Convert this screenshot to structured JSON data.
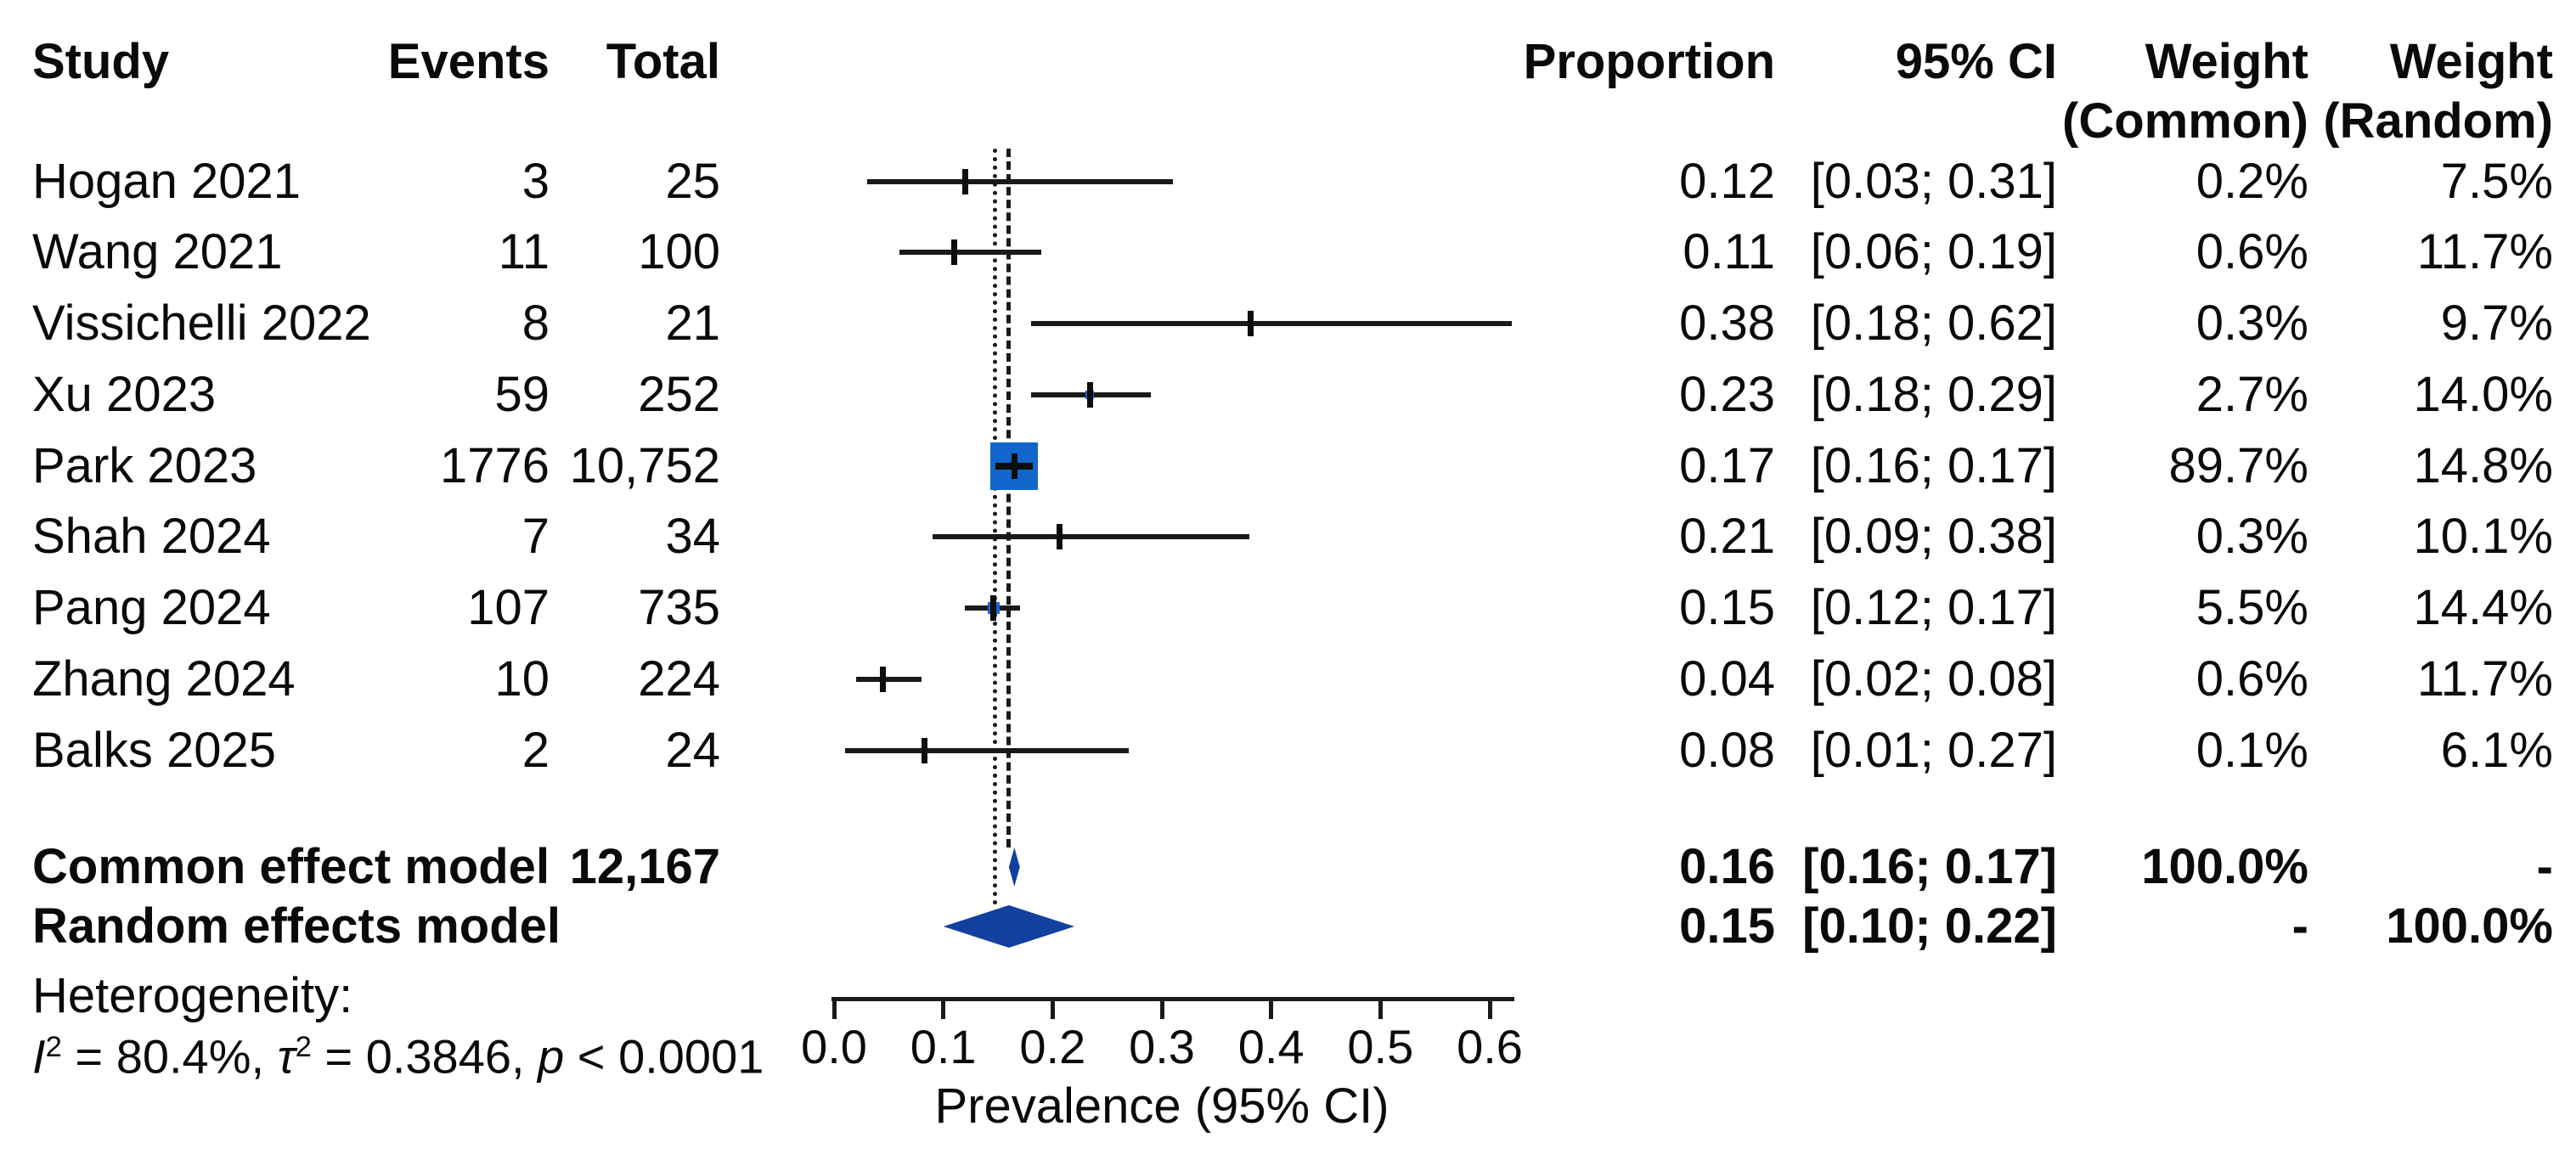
{
  "chart_data": {
    "type": "forest",
    "title": "",
    "xlabel": "Prevalence (95% CI)",
    "x_ticks": [
      "0.0",
      "0.1",
      "0.2",
      "0.3",
      "0.4",
      "0.5",
      "0.6"
    ],
    "x_range": [
      0.0,
      0.6
    ],
    "grid": false,
    "headers": {
      "study": "Study",
      "events": "Events",
      "total": "Total",
      "proportion": "Proportion",
      "ci": "95% CI",
      "weight_common_line1": "Weight",
      "weight_common_line2": "(Common)",
      "weight_random_line1": "Weight",
      "weight_random_line2": "(Random)"
    },
    "studies": [
      {
        "label": "Hogan 2021",
        "events": "3",
        "total": "25",
        "proportion": "0.12",
        "ci": "[0.03; 0.31]",
        "ci_lo": 0.03,
        "ci_hi": 0.31,
        "point": 0.12,
        "weight_common": "0.2%",
        "weight_random": "7.5%",
        "wc": 0.2
      },
      {
        "label": "Wang 2021",
        "events": "11",
        "total": "100",
        "proportion": "0.11",
        "ci": "[0.06; 0.19]",
        "ci_lo": 0.06,
        "ci_hi": 0.19,
        "point": 0.11,
        "weight_common": "0.6%",
        "weight_random": "11.7%",
        "wc": 0.6
      },
      {
        "label": "Vissichelli 2022",
        "events": "8",
        "total": "21",
        "proportion": "0.38",
        "ci": "[0.18; 0.62]",
        "ci_lo": 0.18,
        "ci_hi": 0.62,
        "point": 0.381,
        "weight_common": "0.3%",
        "weight_random": "9.7%",
        "wc": 0.3
      },
      {
        "label": "Xu 2023",
        "events": "59",
        "total": "252",
        "proportion": "0.23",
        "ci": "[0.18; 0.29]",
        "ci_lo": 0.18,
        "ci_hi": 0.29,
        "point": 0.234,
        "weight_common": "2.7%",
        "weight_random": "14.0%",
        "wc": 2.7
      },
      {
        "label": "Park 2023",
        "events": "1776",
        "total": "10,752",
        "proportion": "0.17",
        "ci": "[0.16; 0.17]",
        "ci_lo": 0.16,
        "ci_hi": 0.17,
        "point": 0.165,
        "weight_common": "89.7%",
        "weight_random": "14.8%",
        "wc": 89.7
      },
      {
        "label": "Shah 2024",
        "events": "7",
        "total": "34",
        "proportion": "0.21",
        "ci": "[0.09; 0.38]",
        "ci_lo": 0.09,
        "ci_hi": 0.38,
        "point": 0.206,
        "weight_common": "0.3%",
        "weight_random": "10.1%",
        "wc": 0.3
      },
      {
        "label": "Pang 2024",
        "events": "107",
        "total": "735",
        "proportion": "0.15",
        "ci": "[0.12; 0.17]",
        "ci_lo": 0.12,
        "ci_hi": 0.17,
        "point": 0.146,
        "weight_common": "5.5%",
        "weight_random": "14.4%",
        "wc": 5.5
      },
      {
        "label": "Zhang 2024",
        "events": "10",
        "total": "224",
        "proportion": "0.04",
        "ci": "[0.02; 0.08]",
        "ci_lo": 0.02,
        "ci_hi": 0.08,
        "point": 0.045,
        "weight_common": "0.6%",
        "weight_random": "11.7%",
        "wc": 0.6
      },
      {
        "label": "Balks 2025",
        "events": "2",
        "total": "24",
        "proportion": "0.08",
        "ci": "[0.01; 0.27]",
        "ci_lo": 0.01,
        "ci_hi": 0.27,
        "point": 0.083,
        "weight_common": "0.1%",
        "weight_random": "6.1%",
        "wc": 0.1
      }
    ],
    "summary_rows": [
      {
        "label": "Common effect model",
        "total": "12,167",
        "proportion": "0.16",
        "ci": "[0.16; 0.17]",
        "ci_lo": 0.16,
        "ci_hi": 0.17,
        "weight_common": "100.0%",
        "weight_random": "-"
      },
      {
        "label": "Random effects model",
        "total": "",
        "proportion": "0.15",
        "ci": "[0.10; 0.22]",
        "ci_lo": 0.1,
        "ci_hi": 0.22,
        "weight_common": "-",
        "weight_random": "100.0%"
      }
    ],
    "heterogeneity": {
      "label": "Heterogeneity:",
      "i_sym": "I",
      "i_sup": "2",
      "i_rest": " = 80.4%, ",
      "tau_sym": "τ",
      "tau_sup": "2",
      "tau_rest": " = 0.3846, ",
      "p_sym": "p",
      "p_rest": " < 0.0001"
    },
    "ref_lines": {
      "dashed_common": 0.16,
      "dotted_random": 0.147
    },
    "colors": {
      "square": "#1266cb",
      "diamond": "#11409e",
      "line": "#1a1a1a",
      "text": "#0a0a0a"
    }
  }
}
